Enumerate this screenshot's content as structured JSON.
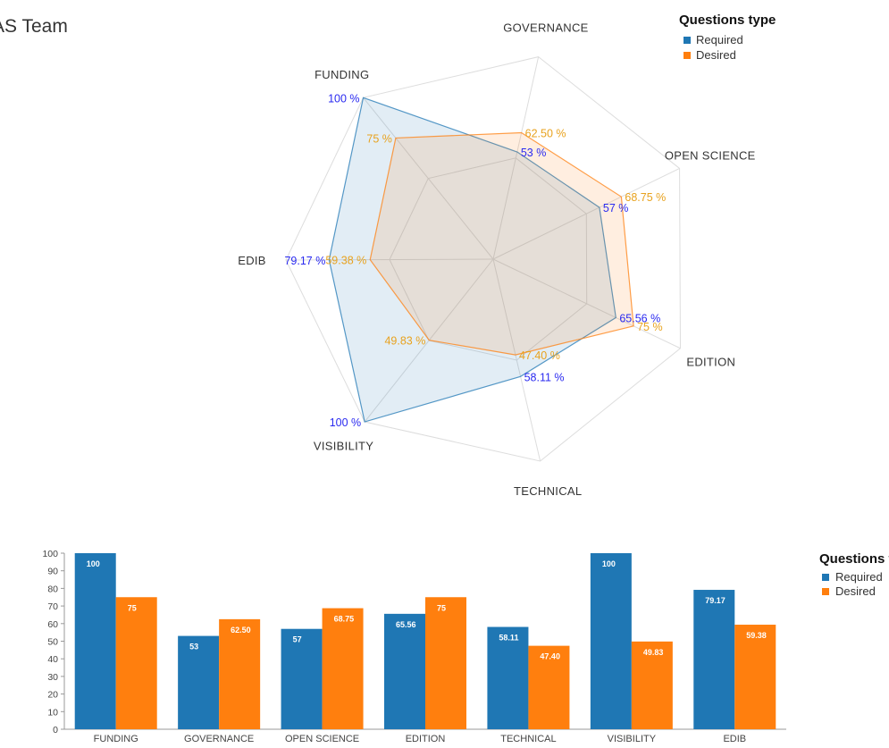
{
  "title": "AS Team",
  "colors": {
    "required": "#1f77b4",
    "desired": "#ff7f0e",
    "required_text": "#2a2af0",
    "desired_text": "#e8a21e"
  },
  "chart_data": [
    {
      "type": "radar",
      "axes": [
        "GOVERNANCE",
        "OPEN SCIENCE",
        "EDITION",
        "TECHNICAL",
        "VISIBILITY",
        "EDIB",
        "FUNDING"
      ],
      "range": [
        0,
        100
      ],
      "legend_title": "Questions type",
      "legend_position": "top-right",
      "series": [
        {
          "name": "Required",
          "values": [
            53,
            57,
            65.56,
            58.11,
            100,
            79.17,
            100
          ],
          "labels": [
            "53 %",
            "57 %",
            "65.56 %",
            "58.11 %",
            "100 %",
            "79.17 %",
            "100 %"
          ]
        },
        {
          "name": "Desired",
          "values": [
            62.5,
            68.75,
            75,
            47.4,
            49.83,
            59.38,
            75
          ],
          "labels": [
            "62.50 %",
            "68.75 %",
            "75 %",
            "47.40 %",
            "49.83 %",
            "59.38 %",
            "75 %"
          ]
        }
      ]
    },
    {
      "type": "bar",
      "categories": [
        "FUNDING",
        "GOVERNANCE",
        "OPEN SCIENCE",
        "EDITION",
        "TECHNICAL",
        "VISIBILITY",
        "EDIB"
      ],
      "ylim": [
        0,
        100
      ],
      "yticks": [
        "0",
        "10",
        "20",
        "30",
        "40",
        "50",
        "60",
        "70",
        "80",
        "90",
        "100"
      ],
      "legend_title": "Questions type",
      "legend_position": "right",
      "series": [
        {
          "name": "Required",
          "values": [
            100,
            53,
            57,
            65.56,
            58.11,
            100,
            79.17
          ],
          "labels": [
            "100",
            "53",
            "57",
            "65.56",
            "58.11",
            "100",
            "79.17"
          ]
        },
        {
          "name": "Desired",
          "values": [
            75,
            62.5,
            68.75,
            75,
            47.4,
            49.83,
            59.38
          ],
          "labels": [
            "75",
            "62.50",
            "68.75",
            "75",
            "47.40",
            "49.83",
            "59.38"
          ]
        }
      ]
    }
  ]
}
